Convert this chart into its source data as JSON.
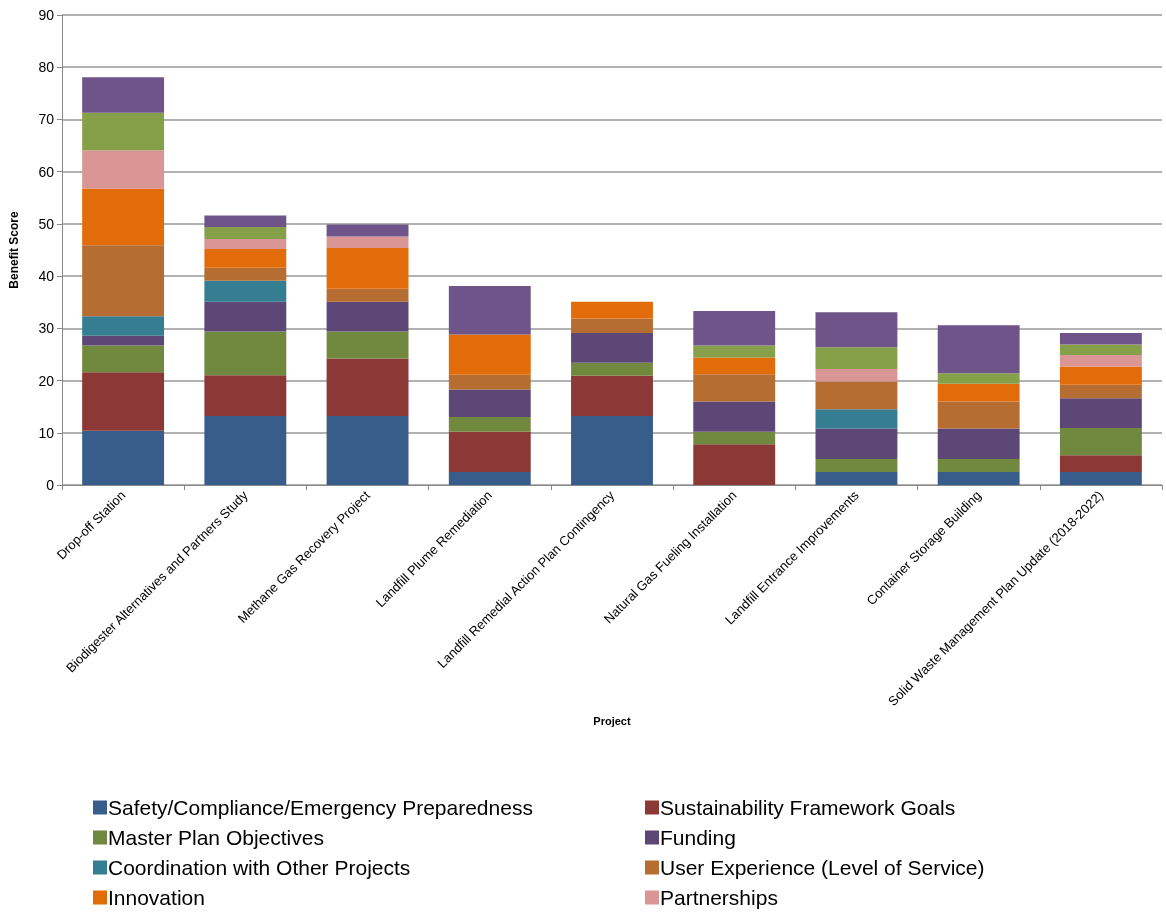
{
  "chart_data": {
    "type": "bar",
    "stacked": true,
    "xlabel": "Project",
    "ylabel": "Benefit Score",
    "categories": [
      "Drop-off Station",
      "Biodigester Alternatives and Partners Study",
      "Methane Gas Recovery Project",
      "Landfill Plume Remediation",
      "Landfill Remedial Action Plan Contingency",
      "Natural Gas Fueling Installation",
      "Landfill Entrance Improvements",
      "Container Storage Building",
      "Solid Waste Management Plan Update (2018-2022)"
    ],
    "series": [
      {
        "name": "Safety/Compliance/Emergency Preparedness",
        "color": "#385d8a",
        "values": [
          10.4,
          13.2,
          13.2,
          2.5,
          13.2,
          0,
          2.5,
          2.5,
          2.5
        ]
      },
      {
        "name": "Sustainability Framework Goals",
        "color": "#8c3836",
        "values": [
          11.2,
          7.8,
          11.0,
          7.7,
          7.7,
          7.8,
          0,
          0,
          3.2
        ]
      },
      {
        "name": "Master Plan Objectives",
        "color": "#71893f",
        "values": [
          5.1,
          8.4,
          5.2,
          2.8,
          2.5,
          2.4,
          2.5,
          2.5,
          5.2
        ]
      },
      {
        "name": "Funding",
        "color": "#5c4776",
        "values": [
          1.9,
          5.7,
          5.7,
          5.3,
          5.7,
          5.8,
          5.8,
          5.8,
          5.7
        ]
      },
      {
        "name": "Coordination with Other Projects",
        "color": "#357d91",
        "values": [
          3.7,
          4.0,
          0,
          0,
          0,
          0,
          3.7,
          0,
          0
        ]
      },
      {
        "name": "User Experience (Level of Service)",
        "color": "#b66d31",
        "values": [
          13.6,
          2.5,
          2.5,
          2.8,
          2.8,
          5.2,
          5.3,
          5.2,
          2.6
        ]
      },
      {
        "name": "Innovation",
        "color": "#e36c0a",
        "values": [
          10.9,
          3.6,
          7.8,
          7.7,
          3.2,
          3.2,
          0,
          3.4,
          3.5
        ]
      },
      {
        "name": "Partnerships",
        "color": "#d99694",
        "values": [
          7.3,
          1.9,
          2.2,
          0,
          0,
          0,
          2.4,
          0,
          2.2
        ]
      },
      {
        "color": "#86a04a",
        "values": [
          7.2,
          2.3,
          0,
          0,
          0,
          2.3,
          4.2,
          2.0,
          2.0
        ]
      },
      {
        "color": "#6e5489",
        "values": [
          6.8,
          2.2,
          2.3,
          9.3,
          0,
          6.6,
          6.7,
          9.2,
          2.2
        ]
      }
    ],
    "ylim": [
      0,
      90
    ],
    "yticks": [
      0,
      10,
      20,
      30,
      40,
      50,
      60,
      70,
      80,
      90
    ],
    "grid": "y",
    "legend": "bottom"
  }
}
